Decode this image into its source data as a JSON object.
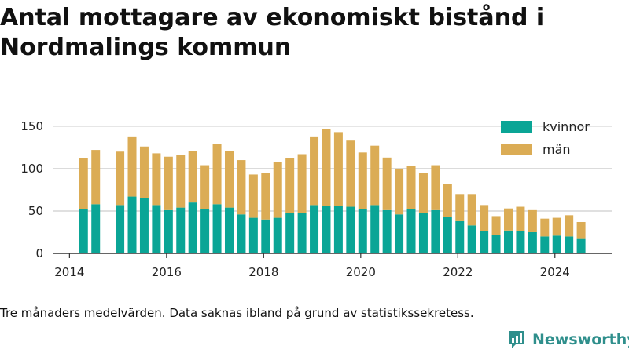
{
  "title": "Antal mottagare av ekonomiskt bistånd i Nordmalings kommun",
  "caption": "Tre månaders medelvärden. Data saknas ibland på grund av statistikssekretess.",
  "logo_text": "Newsworthy",
  "colors": {
    "kvinnor": "#0aa596",
    "man": "#dbac55",
    "grid": "#d6d6d6",
    "axis": "#333333",
    "logo": "#2f8f8c"
  },
  "chart_data": {
    "type": "bar",
    "stacked": true,
    "x_ticks": [
      2014,
      2016,
      2018,
      2020,
      2022,
      2024
    ],
    "y_ticks": [
      0,
      50,
      100,
      150
    ],
    "ylim": [
      0,
      160
    ],
    "xlim": [
      2013.67,
      2025.17
    ],
    "grid": true,
    "legend_position": "top-right",
    "series": [
      {
        "name": "kvinnor",
        "color": "#0aa596",
        "values": [
          52,
          58,
          57,
          67,
          65,
          57,
          51,
          54,
          60,
          52,
          58,
          54,
          46,
          42,
          40,
          42,
          48,
          48,
          57,
          56,
          56,
          55,
          52,
          57,
          51,
          46,
          52,
          48,
          51,
          43,
          38,
          33,
          26,
          22,
          27,
          26,
          25,
          20,
          21,
          20,
          17
        ]
      },
      {
        "name": "män",
        "color": "#dbac55",
        "values": [
          60,
          64,
          63,
          70,
          61,
          61,
          63,
          62,
          61,
          52,
          71,
          67,
          64,
          51,
          55,
          66,
          64,
          69,
          80,
          91,
          87,
          78,
          67,
          70,
          62,
          54,
          51,
          47,
          53,
          39,
          32,
          37,
          31,
          22,
          26,
          29,
          26,
          21,
          21,
          25,
          20
        ]
      }
    ],
    "x": [
      2014.29,
      2014.54,
      2015.04,
      2015.29,
      2015.54,
      2015.79,
      2016.04,
      2016.29,
      2016.54,
      2016.79,
      2017.04,
      2017.29,
      2017.54,
      2017.79,
      2018.04,
      2018.29,
      2018.54,
      2018.79,
      2019.04,
      2019.29,
      2019.54,
      2019.79,
      2020.04,
      2020.29,
      2020.54,
      2020.79,
      2021.04,
      2021.29,
      2021.54,
      2021.79,
      2022.04,
      2022.29,
      2022.54,
      2022.79,
      2023.04,
      2023.29,
      2023.54,
      2023.79,
      2024.04,
      2024.29,
      2024.54
    ]
  }
}
